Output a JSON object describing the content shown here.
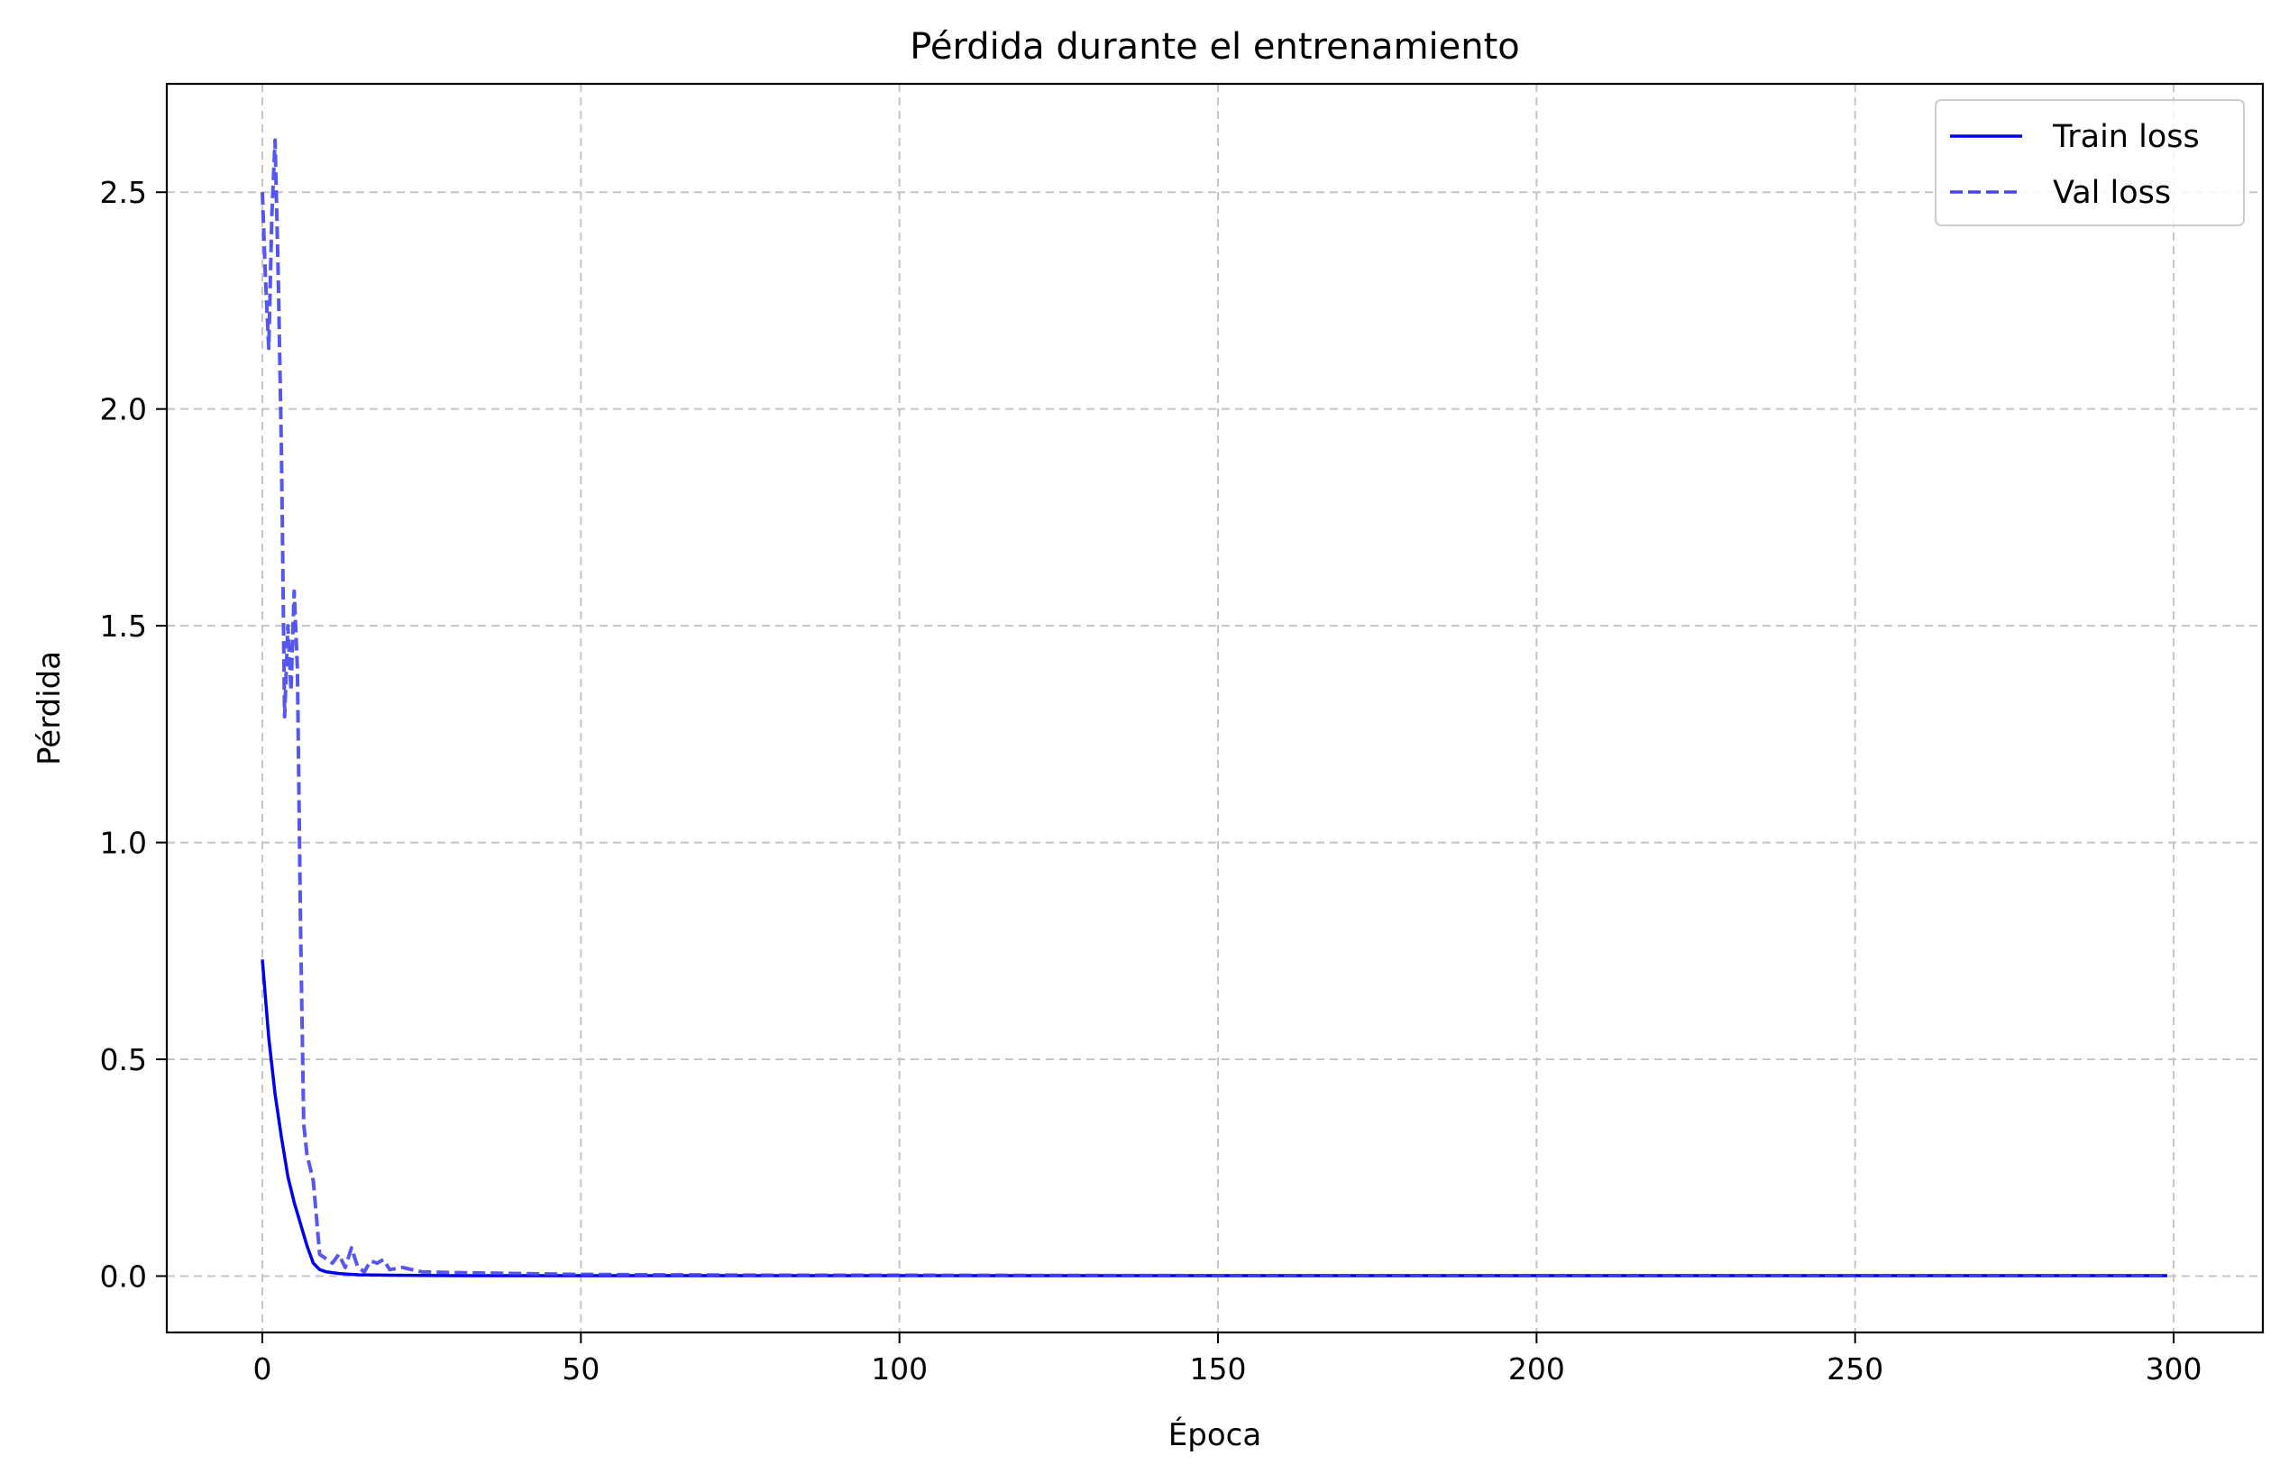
{
  "chart_data": {
    "type": "line",
    "title": "Pérdida durante el entrenamiento",
    "xlabel": "Época",
    "ylabel": "Pérdida",
    "xlim": [
      -15,
      314
    ],
    "ylim": [
      -0.13,
      2.75
    ],
    "xticks": [
      0,
      50,
      100,
      150,
      200,
      250,
      300
    ],
    "yticks": [
      0.0,
      0.5,
      1.0,
      1.5,
      2.0,
      2.5
    ],
    "ytick_labels": [
      "0.0",
      "0.5",
      "1.0",
      "1.5",
      "2.0",
      "2.5"
    ],
    "grid": true,
    "legend_position": "top-right",
    "series": [
      {
        "name": "Train loss",
        "style": "solid",
        "color": "#0000ee",
        "x": [
          0,
          1,
          2,
          3,
          4,
          5,
          6,
          7,
          8,
          9,
          10,
          12,
          15,
          20,
          30,
          50,
          100,
          150,
          200,
          250,
          299
        ],
        "values": [
          0.73,
          0.55,
          0.42,
          0.32,
          0.23,
          0.17,
          0.12,
          0.07,
          0.03,
          0.015,
          0.01,
          0.006,
          0.003,
          0.002,
          0.001,
          0.001,
          0.001,
          0.001,
          0.001,
          0.001,
          0.001
        ]
      },
      {
        "name": "Val loss",
        "style": "dashed",
        "color": "#4444ee",
        "x": [
          0,
          0.5,
          1,
          1.5,
          2,
          2.5,
          3,
          3.5,
          4,
          4.5,
          5,
          5.5,
          6,
          6.5,
          7,
          8,
          9,
          10,
          11,
          12,
          13,
          14,
          15,
          16,
          17,
          18,
          19,
          20,
          22,
          25,
          30,
          40,
          50,
          60,
          80,
          100,
          150,
          200,
          250,
          299
        ],
        "values": [
          2.5,
          2.3,
          2.14,
          2.45,
          2.62,
          2.3,
          1.9,
          1.29,
          1.5,
          1.35,
          1.58,
          1.4,
          0.8,
          0.35,
          0.28,
          0.22,
          0.05,
          0.04,
          0.03,
          0.05,
          0.02,
          0.065,
          0.02,
          0.01,
          0.035,
          0.03,
          0.038,
          0.015,
          0.02,
          0.01,
          0.008,
          0.006,
          0.004,
          0.003,
          0.002,
          0.002,
          0.001,
          0.001,
          0.001,
          0.001
        ]
      }
    ]
  }
}
